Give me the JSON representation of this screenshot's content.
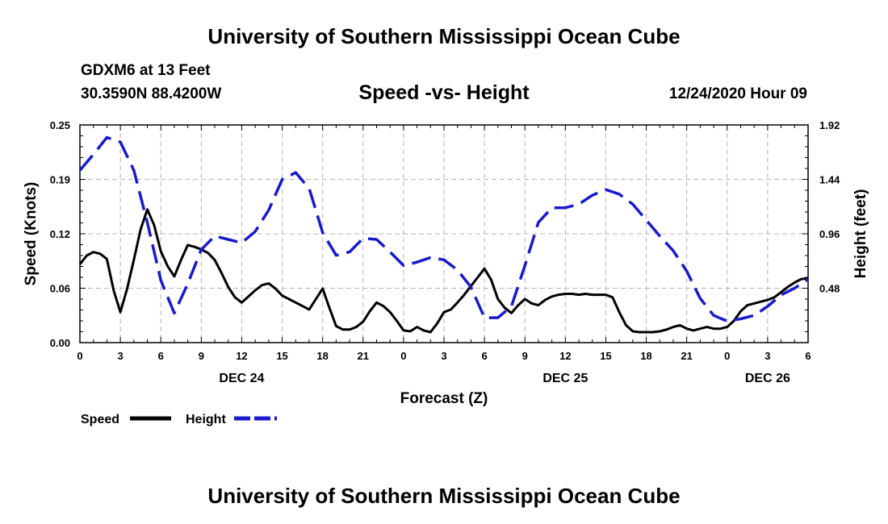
{
  "header": {
    "title": "University of Southern Mississippi Ocean Cube",
    "station": "GDXM6 at 13 Feet",
    "coords": "30.3590N 88.4200W",
    "subtitle": "Speed -vs- Height",
    "datetime": "12/24/2020 Hour 09"
  },
  "footer": {
    "title": "University of Southern Mississippi Ocean Cube"
  },
  "colors": {
    "speed": "#000000",
    "height": "#1a1acc",
    "grid": "#b4b4b4"
  },
  "chart_data": {
    "type": "line",
    "title": "Speed -vs- Height",
    "xlabel": "Forecast (Z)",
    "ylabel": "Speed (Knots)",
    "y2label": "Height (feet)",
    "grid": true,
    "legend_position": "bottom-left",
    "x_units": "forecast hours from 00Z Dec 24",
    "xlim": [
      0,
      54
    ],
    "ylim": [
      0,
      0.25
    ],
    "y2lim": [
      0,
      1.92
    ],
    "x_ticks": [
      0,
      3,
      6,
      9,
      12,
      15,
      18,
      21,
      24,
      27,
      30,
      33,
      36,
      39,
      42,
      45,
      48,
      51,
      54
    ],
    "x_tick_labels": [
      "0",
      "3",
      "6",
      "9",
      "12",
      "15",
      "18",
      "21",
      "0",
      "3",
      "6",
      "9",
      "12",
      "15",
      "18",
      "21",
      "0",
      "3",
      "6"
    ],
    "y_ticks": [
      0,
      0.0625,
      0.125,
      0.1875,
      0.25
    ],
    "y_tick_labels": [
      "0.00",
      "0.06",
      "0.12",
      "0.19",
      "0.25"
    ],
    "y2_ticks": [
      0.48,
      0.96,
      1.44,
      1.92
    ],
    "y2_tick_labels": [
      "0.48",
      "0.96",
      "1.44",
      "1.92"
    ],
    "day_labels": [
      {
        "x": 12,
        "label": "DEC 24"
      },
      {
        "x": 36,
        "label": "DEC 25"
      },
      {
        "x": 51,
        "label": "DEC 26"
      }
    ],
    "legend": [
      {
        "name": "Speed",
        "style": "solid"
      },
      {
        "name": "Height",
        "style": "dashed"
      }
    ],
    "series": [
      {
        "name": "Speed",
        "axis": "left",
        "style": "solid",
        "x": [
          0,
          0.5,
          1,
          1.5,
          2,
          2.5,
          3,
          3.5,
          4,
          4.5,
          5,
          5.5,
          6,
          6.5,
          7,
          7.5,
          8,
          8.5,
          9,
          9.5,
          10,
          10.5,
          11,
          11.5,
          12,
          12.5,
          13,
          13.5,
          14,
          14.5,
          15,
          15.5,
          16,
          16.5,
          17,
          17.5,
          18,
          18.5,
          19,
          19.5,
          20,
          20.5,
          21,
          21.5,
          22,
          22.5,
          23,
          23.5,
          24,
          24.5,
          25,
          25.5,
          26,
          26.5,
          27,
          27.5,
          28,
          28.5,
          29,
          29.5,
          30,
          30.5,
          31,
          31.5,
          32,
          32.5,
          33,
          33.5,
          34,
          34.5,
          35,
          35.5,
          36,
          36.5,
          37,
          37.5,
          38,
          38.5,
          39,
          39.5,
          40,
          40.5,
          41,
          41.5,
          42,
          42.5,
          43,
          43.5,
          44,
          44.5,
          45,
          45.5,
          46,
          46.5,
          47,
          47.5,
          48,
          48.5,
          49,
          49.5,
          50,
          50.5,
          51,
          51.5,
          52,
          52.5,
          53,
          53.5,
          54
        ],
        "values": [
          0.09,
          0.1,
          0.104,
          0.102,
          0.096,
          0.06,
          0.035,
          0.062,
          0.095,
          0.13,
          0.153,
          0.135,
          0.105,
          0.088,
          0.076,
          0.095,
          0.112,
          0.11,
          0.107,
          0.103,
          0.095,
          0.08,
          0.064,
          0.052,
          0.046,
          0.053,
          0.06,
          0.066,
          0.068,
          0.062,
          0.054,
          0.05,
          0.046,
          0.042,
          0.038,
          0.05,
          0.062,
          0.04,
          0.019,
          0.015,
          0.015,
          0.018,
          0.024,
          0.036,
          0.046,
          0.042,
          0.035,
          0.025,
          0.014,
          0.013,
          0.018,
          0.014,
          0.012,
          0.022,
          0.035,
          0.038,
          0.046,
          0.055,
          0.065,
          0.075,
          0.085,
          0.072,
          0.05,
          0.04,
          0.034,
          0.043,
          0.05,
          0.045,
          0.043,
          0.049,
          0.053,
          0.055,
          0.056,
          0.056,
          0.055,
          0.056,
          0.055,
          0.055,
          0.055,
          0.052,
          0.035,
          0.02,
          0.013,
          0.012,
          0.012,
          0.012,
          0.013,
          0.015,
          0.018,
          0.02,
          0.016,
          0.014,
          0.016,
          0.018,
          0.016,
          0.016,
          0.018,
          0.025,
          0.036,
          0.043,
          0.045,
          0.047,
          0.049,
          0.052,
          0.058,
          0.064,
          0.069,
          0.073,
          0.074
        ]
      },
      {
        "name": "Height",
        "axis": "right",
        "style": "dashed",
        "x": [
          0,
          1,
          2,
          3,
          4,
          5,
          6,
          7,
          8,
          9,
          10,
          11,
          12,
          13,
          14,
          15,
          16,
          17,
          18,
          19,
          20,
          21,
          22,
          23,
          24,
          25,
          26,
          27,
          28,
          29,
          30,
          31,
          32,
          33,
          34,
          35,
          36,
          37,
          38,
          39,
          40,
          41,
          42,
          43,
          44,
          45,
          46,
          47,
          48,
          49,
          50,
          51,
          52,
          53,
          54
        ],
        "values": [
          1.52,
          1.66,
          1.81,
          1.77,
          1.52,
          1.06,
          0.55,
          0.26,
          0.52,
          0.82,
          0.94,
          0.91,
          0.88,
          0.98,
          1.17,
          1.44,
          1.5,
          1.36,
          0.97,
          0.77,
          0.8,
          0.92,
          0.91,
          0.8,
          0.68,
          0.71,
          0.75,
          0.73,
          0.64,
          0.49,
          0.22,
          0.22,
          0.32,
          0.68,
          1.06,
          1.19,
          1.19,
          1.22,
          1.3,
          1.35,
          1.31,
          1.22,
          1.08,
          0.94,
          0.81,
          0.63,
          0.39,
          0.24,
          0.19,
          0.21,
          0.24,
          0.32,
          0.42,
          0.48,
          0.56
        ]
      }
    ]
  }
}
